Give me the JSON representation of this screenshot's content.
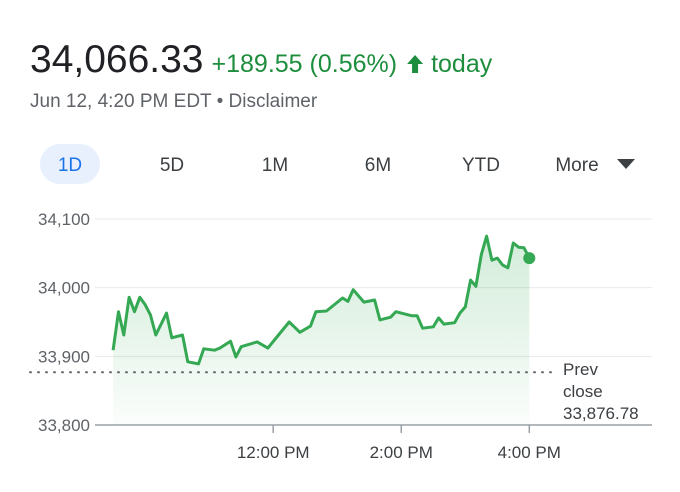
{
  "header": {
    "price": "34,066.33",
    "change": "+189.55 (0.56%)",
    "period": "today",
    "subtitle": "Jun 12, 4:20 PM EDT • Disclaimer"
  },
  "tabs": {
    "items": [
      "1D",
      "5D",
      "1M",
      "6M",
      "YTD",
      "More"
    ],
    "selected": 0
  },
  "chart_data": {
    "type": "line",
    "color": "#34a853",
    "x": [
      570,
      575,
      580,
      585,
      590,
      595,
      600,
      605,
      610,
      620,
      625,
      635,
      640,
      650,
      655,
      665,
      670,
      680,
      685,
      690,
      705,
      715,
      725,
      735,
      745,
      755,
      760,
      770,
      785,
      790,
      795,
      805,
      815,
      820,
      830,
      835,
      850,
      855,
      860,
      870,
      875,
      880,
      890,
      895,
      900,
      905,
      910,
      915,
      920,
      925,
      930,
      935,
      940,
      945,
      950,
      955,
      960
    ],
    "values": [
      33909,
      33965,
      33931,
      33986,
      33965,
      33986,
      33975,
      33960,
      33931,
      33963,
      33927,
      33931,
      33892,
      33889,
      33911,
      33909,
      33912,
      33922,
      33899,
      33914,
      33921,
      33912,
      33931,
      33950,
      33935,
      33944,
      33965,
      33966,
      33985,
      33980,
      33997,
      33979,
      33982,
      33953,
      33957,
      33965,
      33959,
      33959,
      33941,
      33943,
      33956,
      33947,
      33949,
      33963,
      33972,
      34011,
      34002,
      34048,
      34075,
      34040,
      34043,
      34033,
      34029,
      34065,
      34059,
      34058,
      34043
    ],
    "xlim": [
      553,
      1075
    ],
    "xticks": [
      {
        "value": 720,
        "label": "12:00 PM"
      },
      {
        "value": 840,
        "label": "2:00 PM"
      },
      {
        "value": 960,
        "label": "4:00 PM"
      }
    ],
    "ylim": [
      33800,
      34100
    ],
    "yticks": [
      {
        "value": 33800,
        "label": "33,800"
      },
      {
        "value": 33900,
        "label": "33,900"
      },
      {
        "value": 34000,
        "label": "34,000"
      },
      {
        "value": 34100,
        "label": "34,100"
      }
    ],
    "grid": true,
    "prev_close_title": [
      "Prev",
      "close"
    ],
    "prev_close": {
      "value": 33876.78,
      "label": "33,876.78"
    }
  }
}
